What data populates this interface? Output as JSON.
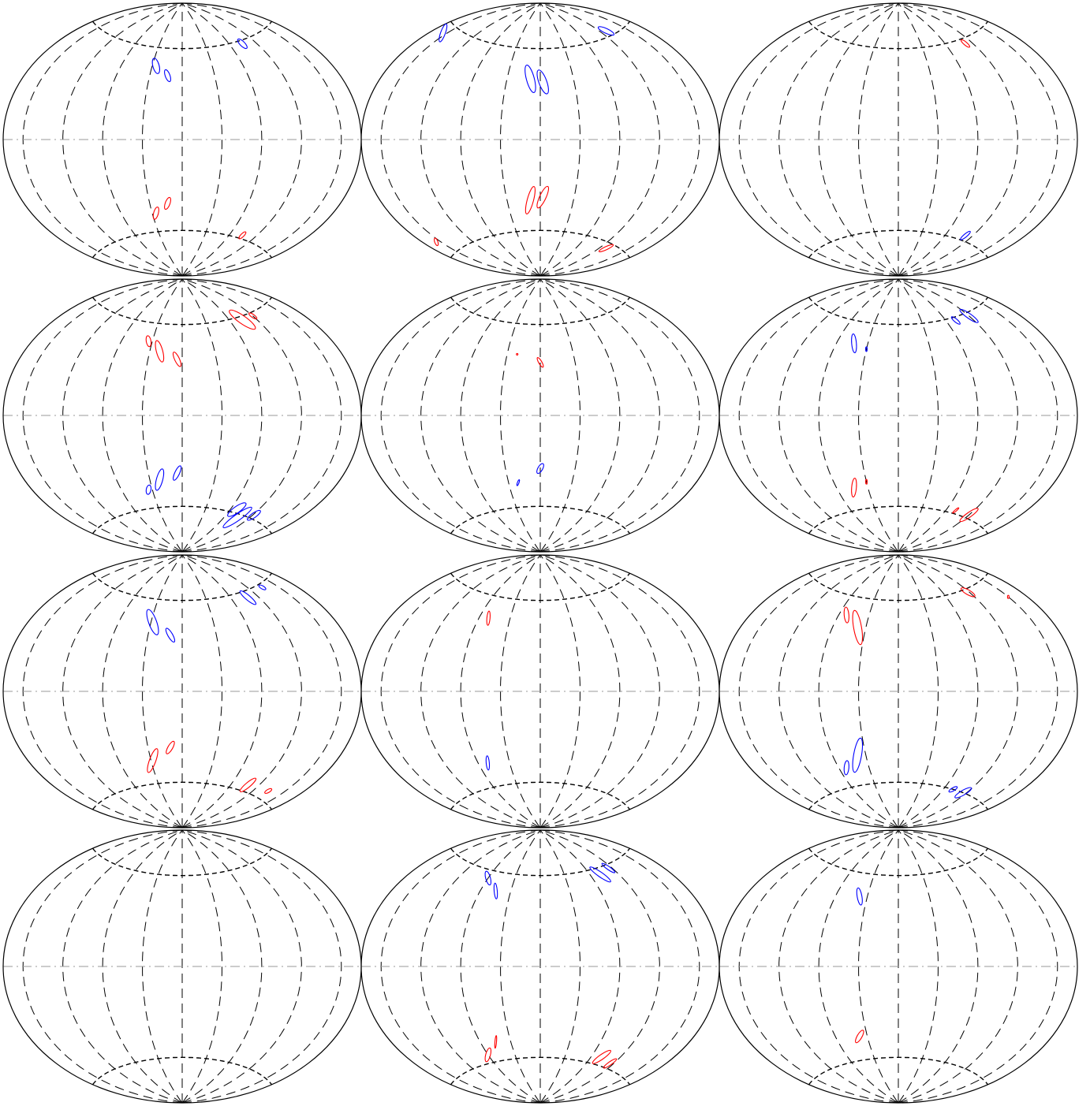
{
  "figure": {
    "grid": {
      "rows": 4,
      "cols": 3
    },
    "projection": "aitoff",
    "graticule": {
      "meridians_visible": 9,
      "parallels_visible": 2
    },
    "colors": {
      "outline": "#000000",
      "graticule": "#000000",
      "equator": "#999999",
      "positive": "#ff0000",
      "negative": "#0000ff"
    },
    "panels": [
      {
        "contours": [
          {
            "lon": -35,
            "lat": 48,
            "rx": 4,
            "ry": 10,
            "rot": -15,
            "color": "negative"
          },
          {
            "lon": -18,
            "lat": 42,
            "rx": 3,
            "ry": 8,
            "rot": -20,
            "color": "negative"
          },
          {
            "lon": 100,
            "lat": 58,
            "rx": 3,
            "ry": 8,
            "rot": -45,
            "color": "negative"
          },
          {
            "lon": -35,
            "lat": -48,
            "rx": 3,
            "ry": 8,
            "rot": 15,
            "color": "positive"
          },
          {
            "lon": -18,
            "lat": -42,
            "rx": 3,
            "ry": 8,
            "rot": 20,
            "color": "positive"
          },
          {
            "lon": 100,
            "lat": -58,
            "rx": 2,
            "ry": 6,
            "rot": 45,
            "color": "positive"
          }
        ]
      },
      {
        "contours": [
          {
            "lon": -165,
            "lat": 55,
            "rx": 3,
            "ry": 12,
            "rot": 20,
            "color": "negative"
          },
          {
            "lon": -12,
            "lat": 40,
            "rx": 5,
            "ry": 18,
            "rot": -15,
            "color": "negative"
          },
          {
            "lon": 3,
            "lat": 38,
            "rx": 5,
            "ry": 16,
            "rot": -20,
            "color": "negative"
          },
          {
            "lon": 130,
            "lat": 63,
            "rx": 3,
            "ry": 11,
            "rot": -65,
            "color": "negative"
          },
          {
            "lon": -12,
            "lat": -40,
            "rx": 4,
            "ry": 18,
            "rot": 15,
            "color": "positive"
          },
          {
            "lon": 3,
            "lat": -38,
            "rx": 4,
            "ry": 15,
            "rot": 25,
            "color": "positive"
          },
          {
            "lon": -165,
            "lat": -52,
            "rx": 2,
            "ry": 5,
            "rot": -20,
            "color": "positive"
          },
          {
            "lon": 130,
            "lat": -63,
            "rx": 2,
            "ry": 10,
            "rot": 65,
            "color": "positive"
          }
        ]
      },
      {
        "contours": [
          {
            "lon": 110,
            "lat": 57,
            "rx": 2,
            "ry": 7,
            "rot": -50,
            "color": "positive"
          },
          {
            "lon": 110,
            "lat": -57,
            "rx": 2,
            "ry": 8,
            "rot": 50,
            "color": "negative"
          }
        ]
      },
      {
        "contours": [
          {
            "lon": -45,
            "lat": 48,
            "rx": 3,
            "ry": 7,
            "rot": -10,
            "color": "positive"
          },
          {
            "lon": -28,
            "lat": 42,
            "rx": 4,
            "ry": 14,
            "rot": -15,
            "color": "positive"
          },
          {
            "lon": -6,
            "lat": 37,
            "rx": 3,
            "ry": 10,
            "rot": -25,
            "color": "positive"
          },
          {
            "lon": 100,
            "lat": 58,
            "rx": 5,
            "ry": 20,
            "rot": -55,
            "color": "positive"
          },
          {
            "lon": 120,
            "lat": 58,
            "rx": 2,
            "ry": 6,
            "rot": -55,
            "color": "positive"
          },
          {
            "lon": -45,
            "lat": -48,
            "rx": 3,
            "ry": 6,
            "rot": 10,
            "color": "negative"
          },
          {
            "lon": -28,
            "lat": -42,
            "rx": 4,
            "ry": 14,
            "rot": 15,
            "color": "negative"
          },
          {
            "lon": -6,
            "lat": -38,
            "rx": 3,
            "ry": 10,
            "rot": 25,
            "color": "negative"
          },
          {
            "lon": 90,
            "lat": -58,
            "rx": 4,
            "ry": 14,
            "rot": 55,
            "color": "negative"
          },
          {
            "lon": 102,
            "lat": -62,
            "rx": 4,
            "ry": 22,
            "rot": 55,
            "color": "negative"
          },
          {
            "lon": 122,
            "lat": -58,
            "rx": 3,
            "ry": 10,
            "rot": 55,
            "color": "negative"
          }
        ]
      },
      {
        "contours": [
          {
            "lon": 0,
            "lat": 35,
            "rx": 2,
            "ry": 7,
            "rot": -30,
            "color": "positive"
          },
          {
            "lon": -28,
            "lat": 40,
            "rx": 1,
            "ry": 1,
            "rot": 0,
            "color": "positive"
          },
          {
            "lon": 0,
            "lat": -35,
            "rx": 3,
            "ry": 7,
            "rot": 30,
            "color": "negative"
          },
          {
            "lon": -28,
            "lat": -44,
            "rx": 1,
            "ry": 4,
            "rot": 20,
            "color": "negative"
          }
        ]
      },
      {
        "contours": [
          {
            "lon": -58,
            "lat": 46,
            "rx": 3,
            "ry": 12,
            "rot": -5,
            "color": "negative"
          },
          {
            "lon": -40,
            "lat": 43,
            "rx": 1,
            "ry": 3,
            "rot": 0,
            "color": "negative"
          },
          {
            "lon": 95,
            "lat": 58,
            "rx": 2,
            "ry": 7,
            "rot": -50,
            "color": "negative"
          },
          {
            "lon": 120,
            "lat": 58,
            "rx": 3,
            "ry": 14,
            "rot": -55,
            "color": "negative"
          },
          {
            "lon": -58,
            "lat": -46,
            "rx": 3,
            "ry": 12,
            "rot": 5,
            "color": "positive"
          },
          {
            "lon": -40,
            "lat": -43,
            "rx": 1,
            "ry": 3,
            "rot": 0,
            "color": "positive"
          },
          {
            "lon": 95,
            "lat": -58,
            "rx": 1,
            "ry": 5,
            "rot": 50,
            "color": "positive"
          },
          {
            "lon": 120,
            "lat": -58,
            "rx": 3,
            "ry": 14,
            "rot": 55,
            "color": "positive"
          }
        ]
      },
      {
        "contours": [
          {
            "lon": -38,
            "lat": 45,
            "rx": 5,
            "ry": 17,
            "rot": -20,
            "color": "negative"
          },
          {
            "lon": -14,
            "lat": 37,
            "rx": 3,
            "ry": 10,
            "rot": -30,
            "color": "negative"
          },
          {
            "lon": 105,
            "lat": 56,
            "rx": 3,
            "ry": 13,
            "rot": -50,
            "color": "negative"
          },
          {
            "lon": 140,
            "lat": 58,
            "rx": 2,
            "ry": 5,
            "rot": -60,
            "color": "negative"
          },
          {
            "lon": -38,
            "lat": -45,
            "rx": 4,
            "ry": 16,
            "rot": 20,
            "color": "positive"
          },
          {
            "lon": -14,
            "lat": -37,
            "rx": 3,
            "ry": 9,
            "rot": 30,
            "color": "positive"
          },
          {
            "lon": 105,
            "lat": -56,
            "rx": 3,
            "ry": 13,
            "rot": 50,
            "color": "positive"
          },
          {
            "lon": 140,
            "lat": -55,
            "rx": 2,
            "ry": 5,
            "rot": 60,
            "color": "positive"
          }
        ]
      },
      {
        "contours": [
          {
            "lon": -68,
            "lat": 46,
            "rx": 2,
            "ry": 9,
            "rot": 5,
            "color": "positive"
          },
          {
            "lon": -68,
            "lat": -45,
            "rx": 2,
            "ry": 9,
            "rot": -5,
            "color": "negative"
          }
        ]
      },
      {
        "contours": [
          {
            "lon": -70,
            "lat": 48,
            "rx": 3,
            "ry": 10,
            "rot": -5,
            "color": "positive"
          },
          {
            "lon": -50,
            "lat": 41,
            "rx": 5,
            "ry": 22,
            "rot": -10,
            "color": "positive"
          },
          {
            "lon": 118,
            "lat": 58,
            "rx": 3,
            "ry": 10,
            "rot": -60,
            "color": "positive"
          },
          {
            "lon": 160,
            "lat": 48,
            "rx": 1,
            "ry": 2,
            "rot": 0,
            "color": "positive"
          },
          {
            "lon": -70,
            "lat": -48,
            "rx": 3,
            "ry": 9,
            "rot": 5,
            "color": "negative"
          },
          {
            "lon": -50,
            "lat": -41,
            "rx": 5,
            "ry": 22,
            "rot": 10,
            "color": "negative"
          },
          {
            "lon": 95,
            "lat": -60,
            "rx": 2,
            "ry": 6,
            "rot": 60,
            "color": "negative"
          },
          {
            "lon": 115,
            "lat": -60,
            "rx": 3,
            "ry": 12,
            "rot": 60,
            "color": "negative"
          }
        ]
      },
      {
        "contours": []
      },
      {
        "contours": [
          {
            "lon": -80,
            "lat": 55,
            "rx": 3,
            "ry": 9,
            "rot": -15,
            "color": "negative"
          },
          {
            "lon": -60,
            "lat": 48,
            "rx": 2,
            "ry": 10,
            "rot": -5,
            "color": "negative"
          },
          {
            "lon": 95,
            "lat": 56,
            "rx": 3,
            "ry": 16,
            "rot": -55,
            "color": "negative"
          },
          {
            "lon": 115,
            "lat": 58,
            "rx": 2,
            "ry": 10,
            "rot": -55,
            "color": "negative"
          },
          {
            "lon": -80,
            "lat": -55,
            "rx": 3,
            "ry": 9,
            "rot": 15,
            "color": "positive"
          },
          {
            "lon": -60,
            "lat": -48,
            "rx": 1,
            "ry": 8,
            "rot": 5,
            "color": "positive"
          },
          {
            "lon": 95,
            "lat": -55,
            "rx": 3,
            "ry": 14,
            "rot": 55,
            "color": "positive"
          },
          {
            "lon": 115,
            "lat": -57,
            "rx": 2,
            "ry": 10,
            "rot": 55,
            "color": "positive"
          }
        ]
      },
      {
        "contours": [
          {
            "lon": -50,
            "lat": 45,
            "rx": 3,
            "ry": 11,
            "rot": -10,
            "color": "negative"
          },
          {
            "lon": -50,
            "lat": -45,
            "rx": 3,
            "ry": 9,
            "rot": 30,
            "color": "positive"
          }
        ]
      }
    ]
  }
}
